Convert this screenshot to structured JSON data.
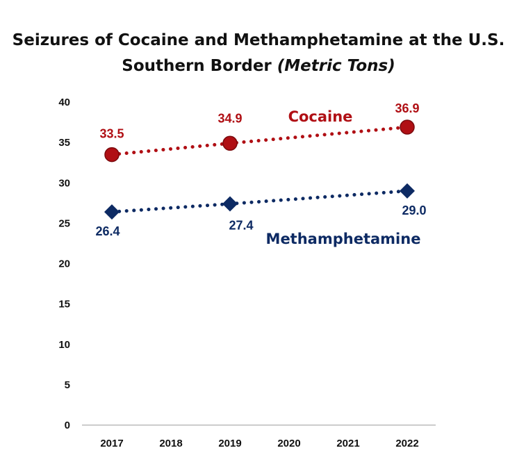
{
  "chart_data": {
    "type": "line",
    "title": "Seizures of Cocaine and Methamphetamine at the U.S. Southern Border",
    "title_line1": "Seizures of Cocaine and Methamphetamine at the U.S.",
    "title_line2": "Southern Border",
    "title_unit": "(Metric Tons)",
    "xlabel": "",
    "ylabel": "",
    "categories": [
      "2017",
      "2018",
      "2019",
      "2020",
      "2021",
      "2022"
    ],
    "ylim": [
      0,
      40
    ],
    "yticks": [
      "0",
      "5",
      "10",
      "15",
      "20",
      "25",
      "30",
      "35",
      "40"
    ],
    "grid": false,
    "legend": "none",
    "series": [
      {
        "name": "Cocaine",
        "color": "#b00f14",
        "marker": "circle",
        "line_style": "dotted",
        "points": [
          {
            "x": "2017",
            "y": 33.5,
            "label": "33.5"
          },
          {
            "x": "2019",
            "y": 34.9,
            "label": "34.9"
          },
          {
            "x": "2022",
            "y": 36.9,
            "label": "36.9"
          }
        ]
      },
      {
        "name": "Methamphetamine",
        "color": "#0d2a63",
        "marker": "diamond",
        "line_style": "dotted",
        "points": [
          {
            "x": "2017",
            "y": 26.4,
            "label": "26.4"
          },
          {
            "x": "2019",
            "y": 27.4,
            "label": "27.4"
          },
          {
            "x": "2022",
            "y": 29.0,
            "label": "29.0"
          }
        ]
      }
    ]
  }
}
